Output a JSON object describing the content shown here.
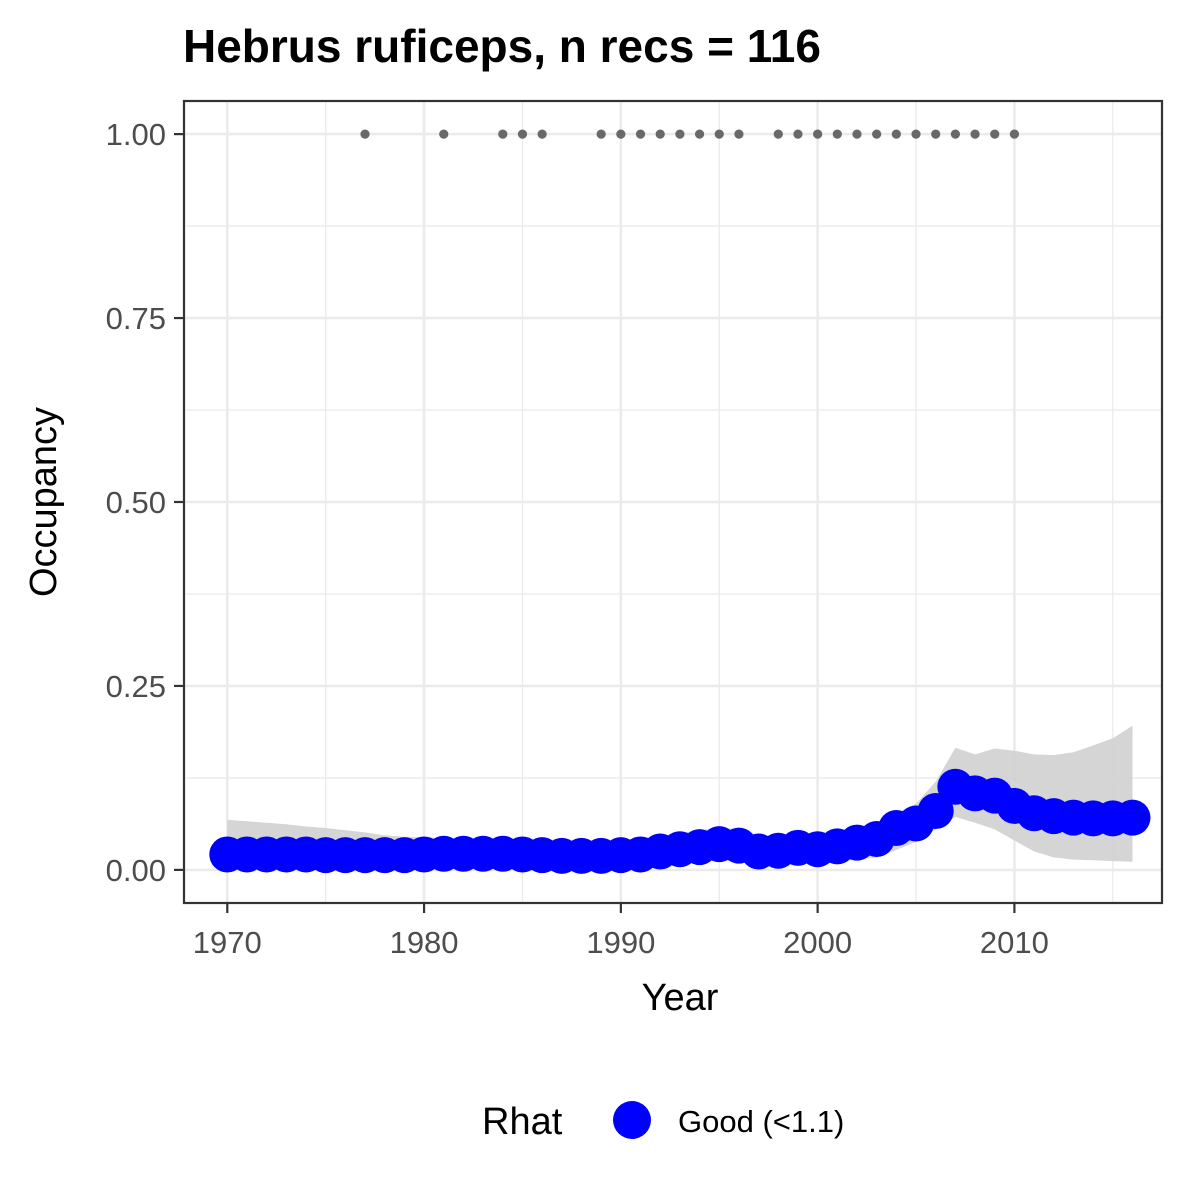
{
  "chart_data": {
    "type": "line",
    "title": "Hebrus ruficeps, n recs = 116",
    "xlabel": "Year",
    "ylabel": "Occupancy",
    "xlim": [
      1967.8,
      2017.5
    ],
    "ylim": [
      -0.045,
      1.045
    ],
    "x_ticks": [
      1970,
      1980,
      1990,
      2000,
      2010
    ],
    "x_tick_labels": [
      "1970",
      "1980",
      "1990",
      "2000",
      "2010"
    ],
    "y_ticks": [
      0.0,
      0.25,
      0.5,
      0.75,
      1.0
    ],
    "y_tick_labels": [
      "0.00",
      "0.25",
      "0.50",
      "0.75",
      "1.00"
    ],
    "grid": true,
    "legend": {
      "title": "Rhat",
      "position": "bottom",
      "entries": [
        {
          "label": "Good (<1.1)",
          "color": "#0000ff"
        }
      ]
    },
    "colors": {
      "series": "#0000ff",
      "band": "#d3d3d3",
      "records": "#696969",
      "grid": "#ebebeb",
      "panel_border": "#333333"
    },
    "series": [
      {
        "name": "Good (<1.1)",
        "x": [
          1970,
          1971,
          1972,
          1973,
          1974,
          1975,
          1976,
          1977,
          1978,
          1979,
          1980,
          1981,
          1982,
          1983,
          1984,
          1985,
          1986,
          1987,
          1988,
          1989,
          1990,
          1991,
          1992,
          1993,
          1994,
          1995,
          1996,
          1997,
          1998,
          1999,
          2000,
          2001,
          2002,
          2003,
          2004,
          2005,
          2006,
          2007,
          2008,
          2009,
          2010,
          2011,
          2012,
          2013,
          2014,
          2015,
          2016
        ],
        "y": [
          0.021,
          0.021,
          0.021,
          0.021,
          0.021,
          0.02,
          0.02,
          0.02,
          0.02,
          0.02,
          0.021,
          0.022,
          0.022,
          0.022,
          0.022,
          0.021,
          0.02,
          0.019,
          0.019,
          0.019,
          0.02,
          0.021,
          0.025,
          0.028,
          0.031,
          0.035,
          0.033,
          0.025,
          0.026,
          0.03,
          0.028,
          0.032,
          0.037,
          0.042,
          0.057,
          0.063,
          0.08,
          0.113,
          0.104,
          0.101,
          0.087,
          0.077,
          0.073,
          0.071,
          0.07,
          0.07,
          0.071
        ],
        "lower": [
          0.004,
          0.004,
          0.004,
          0.004,
          0.004,
          0.004,
          0.004,
          0.004,
          0.004,
          0.004,
          0.005,
          0.005,
          0.005,
          0.005,
          0.005,
          0.005,
          0.005,
          0.005,
          0.005,
          0.005,
          0.006,
          0.006,
          0.008,
          0.009,
          0.011,
          0.013,
          0.012,
          0.009,
          0.009,
          0.011,
          0.01,
          0.012,
          0.014,
          0.017,
          0.027,
          0.038,
          0.055,
          0.072,
          0.064,
          0.055,
          0.04,
          0.025,
          0.017,
          0.014,
          0.013,
          0.012,
          0.011
        ],
        "upper": [
          0.068,
          0.066,
          0.064,
          0.062,
          0.059,
          0.057,
          0.054,
          0.051,
          0.047,
          0.045,
          0.044,
          0.043,
          0.042,
          0.041,
          0.04,
          0.039,
          0.038,
          0.038,
          0.038,
          0.038,
          0.04,
          0.042,
          0.046,
          0.05,
          0.054,
          0.058,
          0.055,
          0.047,
          0.046,
          0.05,
          0.048,
          0.051,
          0.056,
          0.063,
          0.077,
          0.09,
          0.12,
          0.166,
          0.157,
          0.165,
          0.162,
          0.157,
          0.156,
          0.16,
          0.169,
          0.179,
          0.196
        ]
      }
    ],
    "records": {
      "y": 1.0,
      "x": [
        1977,
        1981,
        1984,
        1985,
        1986,
        1989,
        1990,
        1991,
        1992,
        1993,
        1994,
        1995,
        1996,
        1998,
        1999,
        2000,
        2001,
        2002,
        2003,
        2004,
        2005,
        2006,
        2007,
        2008,
        2009,
        2010
      ]
    }
  }
}
